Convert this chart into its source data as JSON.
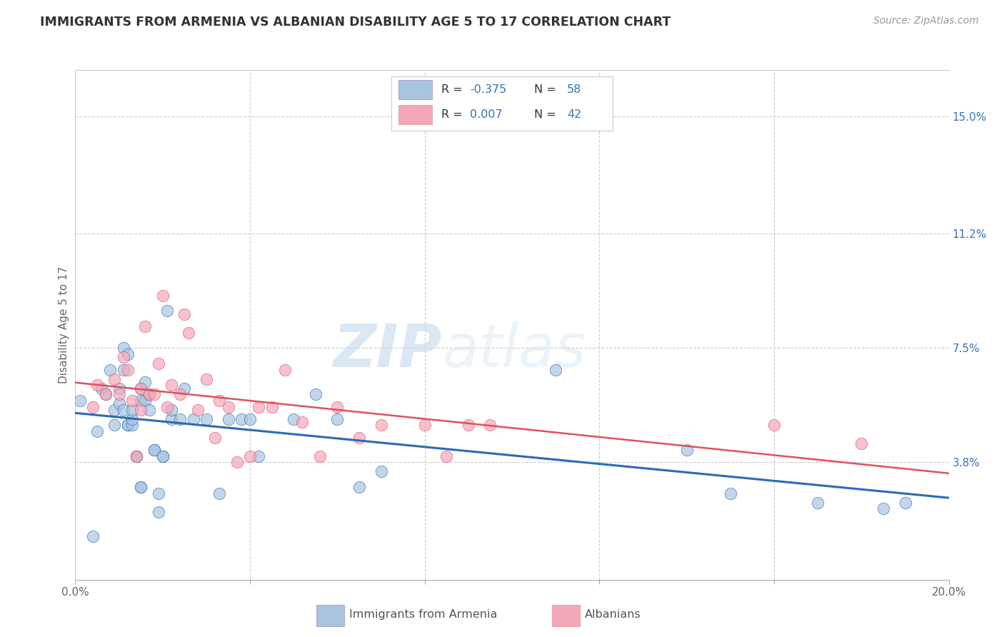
{
  "title": "IMMIGRANTS FROM ARMENIA VS ALBANIAN DISABILITY AGE 5 TO 17 CORRELATION CHART",
  "source": "Source: ZipAtlas.com",
  "ylabel": "Disability Age 5 to 17",
  "xlim": [
    0.0,
    0.2
  ],
  "ylim": [
    0.0,
    0.165
  ],
  "xticks": [
    0.0,
    0.04,
    0.08,
    0.12,
    0.16,
    0.2
  ],
  "xticklabels": [
    "0.0%",
    "",
    "",
    "",
    "",
    "20.0%"
  ],
  "right_yticks": [
    0.038,
    0.075,
    0.112,
    0.15
  ],
  "right_yticklabels": [
    "3.8%",
    "7.5%",
    "11.2%",
    "15.0%"
  ],
  "color_armenia": "#a8c4e0",
  "color_albanian": "#f4a7b9",
  "color_line_armenia": "#2b6bb5",
  "color_line_albanian": "#e05060",
  "legend_r1_label": "R = ",
  "legend_r1_val": "-0.375",
  "legend_n1_label": "N = ",
  "legend_n1_val": "58",
  "legend_r2_label": "R = ",
  "legend_r2_val": "0.007",
  "legend_n2_label": "N = ",
  "legend_n2_val": "42",
  "legend_text_color": "#3575b5",
  "legend_label_color": "#333333",
  "watermark_zip": "ZIP",
  "watermark_atlas": "atlas",
  "armenia_x": [
    0.001,
    0.004,
    0.005,
    0.006,
    0.007,
    0.008,
    0.009,
    0.009,
    0.01,
    0.01,
    0.011,
    0.011,
    0.011,
    0.012,
    0.012,
    0.012,
    0.013,
    0.013,
    0.013,
    0.014,
    0.014,
    0.015,
    0.015,
    0.015,
    0.015,
    0.016,
    0.016,
    0.017,
    0.017,
    0.018,
    0.018,
    0.019,
    0.019,
    0.02,
    0.02,
    0.021,
    0.022,
    0.022,
    0.024,
    0.025,
    0.027,
    0.03,
    0.033,
    0.035,
    0.038,
    0.04,
    0.042,
    0.05,
    0.055,
    0.06,
    0.065,
    0.07,
    0.11,
    0.14,
    0.15,
    0.17,
    0.185,
    0.19
  ],
  "armenia_y": [
    0.058,
    0.014,
    0.048,
    0.062,
    0.06,
    0.068,
    0.055,
    0.05,
    0.057,
    0.062,
    0.055,
    0.068,
    0.075,
    0.05,
    0.05,
    0.073,
    0.05,
    0.052,
    0.055,
    0.04,
    0.04,
    0.03,
    0.03,
    0.058,
    0.062,
    0.058,
    0.064,
    0.055,
    0.06,
    0.042,
    0.042,
    0.022,
    0.028,
    0.04,
    0.04,
    0.087,
    0.052,
    0.055,
    0.052,
    0.062,
    0.052,
    0.052,
    0.028,
    0.052,
    0.052,
    0.052,
    0.04,
    0.052,
    0.06,
    0.052,
    0.03,
    0.035,
    0.068,
    0.042,
    0.028,
    0.025,
    0.023,
    0.025
  ],
  "albanian_x": [
    0.004,
    0.005,
    0.007,
    0.009,
    0.01,
    0.011,
    0.012,
    0.013,
    0.014,
    0.015,
    0.015,
    0.016,
    0.017,
    0.018,
    0.019,
    0.02,
    0.021,
    0.022,
    0.024,
    0.025,
    0.026,
    0.028,
    0.03,
    0.032,
    0.033,
    0.035,
    0.037,
    0.04,
    0.042,
    0.045,
    0.048,
    0.052,
    0.056,
    0.06,
    0.065,
    0.07,
    0.08,
    0.085,
    0.09,
    0.095,
    0.16,
    0.18
  ],
  "albanian_y": [
    0.056,
    0.063,
    0.06,
    0.065,
    0.06,
    0.072,
    0.068,
    0.058,
    0.04,
    0.055,
    0.062,
    0.082,
    0.06,
    0.06,
    0.07,
    0.092,
    0.056,
    0.063,
    0.06,
    0.086,
    0.08,
    0.055,
    0.065,
    0.046,
    0.058,
    0.056,
    0.038,
    0.04,
    0.056,
    0.056,
    0.068,
    0.051,
    0.04,
    0.056,
    0.046,
    0.05,
    0.05,
    0.04,
    0.05,
    0.05,
    0.05,
    0.044
  ]
}
